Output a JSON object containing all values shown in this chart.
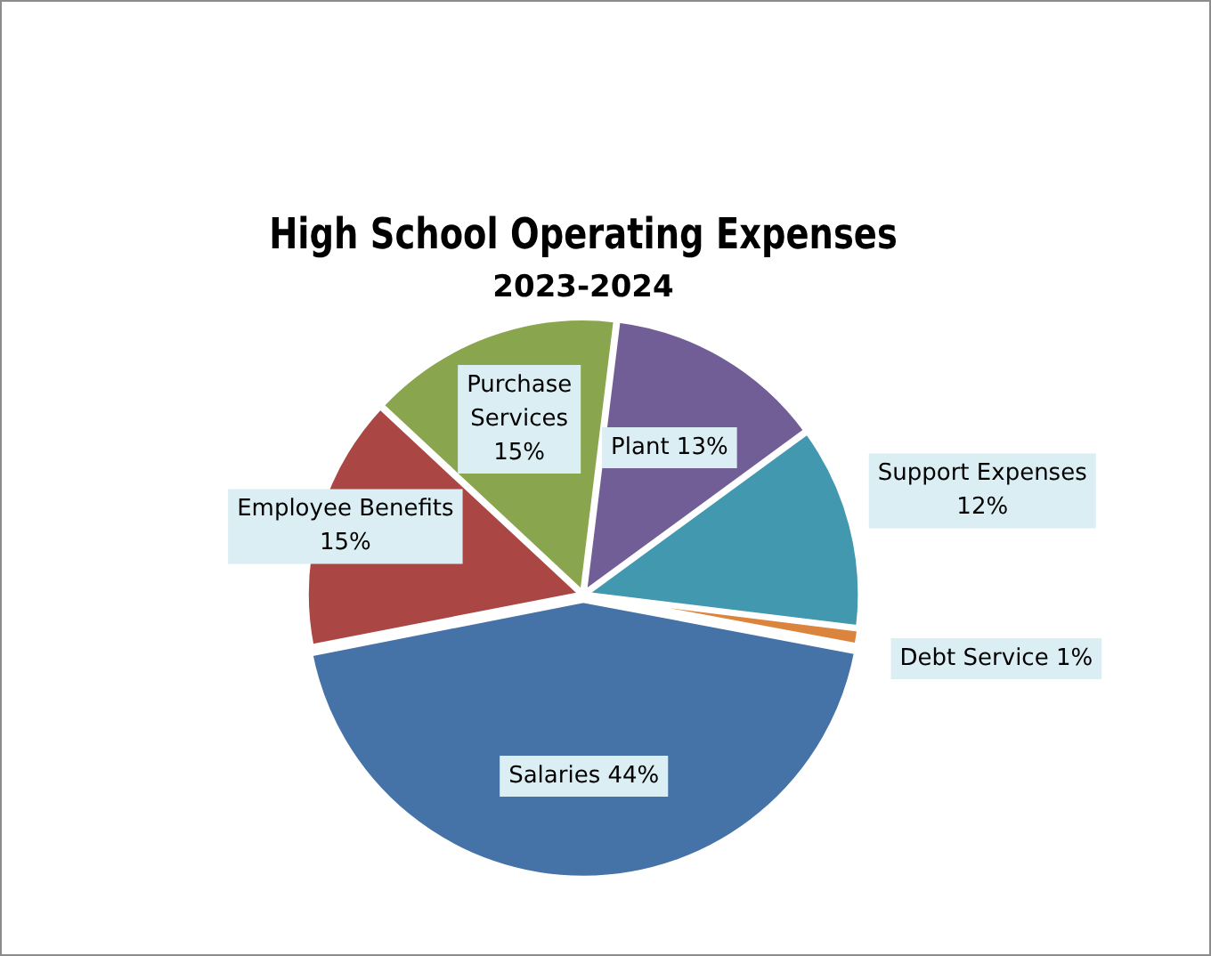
{
  "chart_data": {
    "type": "pie",
    "title": "High School Operating Expenses",
    "subtitle": "2023-2024",
    "categories": [
      "Plant",
      "Support Expenses",
      "Debt Service",
      "Salaries",
      "Employee Benefits",
      "Purchase Services"
    ],
    "values": [
      13,
      12,
      1,
      44,
      15,
      15
    ],
    "colors": [
      "#725e96",
      "#4198af",
      "#db843d",
      "#4572a7",
      "#aa4643",
      "#89a54e"
    ],
    "value_labels": [
      "13%",
      "12%",
      "1%",
      "44%",
      "15%",
      "15%"
    ],
    "legend": false
  }
}
